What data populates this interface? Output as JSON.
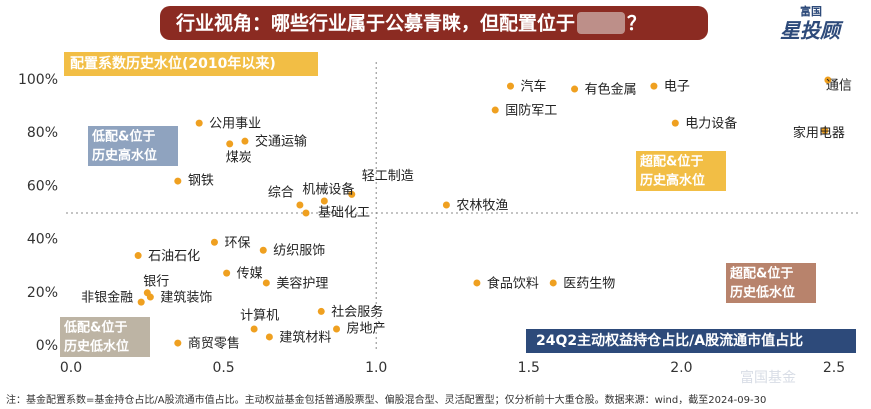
{
  "chart_data": {
    "type": "scatter",
    "title": "行业视角：哪些行业属于公募青睐，但配置位于",
    "title_end": "？",
    "logo_small": "富国",
    "logo_big": "星投顾",
    "subtitle": "配置系数历史水位(2010年以来)",
    "x_label": "24Q2主动权益持仓占比/A股流通市值占比",
    "watermark": "富国基金",
    "footnote": "注：基金配置系数=基金持仓占比/A股流通市值占比。主动权益基金包括普通股票型、偏股混合型、灵活配置型；仅分析前十大重仓股。数据来源：wind，截至2024-09-30",
    "quadrants": [
      {
        "lines": [
          "低配&位于",
          "历史高水位"
        ],
        "color": "#8fa3bf"
      },
      {
        "lines": [
          "超配&位于",
          "历史高水位"
        ],
        "color": "#f2be45"
      },
      {
        "lines": [
          "超配&位于",
          "历史低水位"
        ],
        "color": "#b8836c"
      },
      {
        "lines": [
          "低配&位于",
          "历史低水位"
        ],
        "color": "#bdb4a4"
      }
    ],
    "color": "#efa020",
    "xlim": [
      0,
      2.5
    ],
    "ylim": [
      0,
      100
    ],
    "xticks": [
      {
        "value": 0,
        "label": "0.0"
      },
      0.5,
      {
        "value": 1,
        "label": "1.0"
      },
      1.5,
      {
        "value": 2,
        "label": "2.0"
      },
      2.5
    ],
    "yticks": [
      {
        "value": 0,
        "label": "0%"
      },
      {
        "value": 20,
        "label": "20%"
      },
      {
        "value": 40,
        "label": "40%"
      },
      {
        "value": 60,
        "label": "60%"
      },
      {
        "value": 80,
        "label": "80%"
      },
      {
        "value": 100,
        "label": "100%"
      }
    ],
    "x_divider": 1,
    "y_divider": 50,
    "labels": [
      "汽车",
      "有色金属",
      "电子",
      "通信",
      "国防军工",
      "电力设备",
      "家用电器",
      "公用事业",
      "交通运输",
      "煤炭",
      "钢铁",
      "轻工制造",
      "机械设备",
      "综合",
      "基础化工",
      "农林牧渔",
      "环保",
      "纺织服饰",
      "石油石化",
      "传媒",
      "美容护理",
      "银行",
      "非银金融",
      "建筑装饰",
      "食品饮料",
      "医药生物",
      "社会服务",
      "计算机",
      "房地产",
      "建筑材料",
      "商贸零售"
    ],
    "x": [
      1.44,
      1.65,
      1.91,
      2.48,
      1.39,
      1.98,
      2.47,
      0.42,
      0.57,
      0.52,
      0.35,
      0.92,
      0.83,
      0.75,
      0.77,
      1.23,
      0.47,
      0.63,
      0.22,
      0.51,
      0.64,
      0.25,
      0.23,
      0.26,
      1.33,
      1.58,
      0.82,
      0.6,
      0.87,
      0.65,
      0.35
    ],
    "y": [
      97.7,
      96.6,
      97.7,
      100,
      88.7,
      83.8,
      81,
      83.8,
      77,
      76,
      62,
      57,
      54.5,
      53,
      50,
      53,
      39,
      36,
      34,
      27.4,
      23.7,
      20,
      16.5,
      18.4,
      23.7,
      23.7,
      13,
      6.4,
      6.4,
      3.4,
      1.1
    ]
  }
}
